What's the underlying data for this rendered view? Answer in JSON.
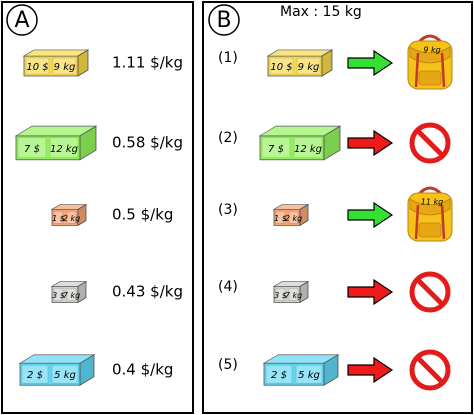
{
  "panels": {
    "a": {
      "label": "A",
      "items": [
        {
          "price": "10 $",
          "weight": "9 kg",
          "rate": "1.11 $/kg",
          "color": "#f7d84a"
        },
        {
          "price": "7 $",
          "weight": "12 kg",
          "rate": "0.58 $/kg",
          "color": "#92f25c"
        },
        {
          "price": "1 $",
          "weight": "2 kg",
          "rate": "0.5 $/kg",
          "color": "#f5a474"
        },
        {
          "price": "3 $",
          "weight": "7 kg",
          "rate": "0.43 $/kg",
          "color": "#cfcfcb"
        },
        {
          "price": "2 $",
          "weight": "5 kg",
          "rate": "0.4 $/kg",
          "color": "#5fd6f4"
        }
      ]
    },
    "b": {
      "label": "B",
      "title": "Max : 15 kg",
      "steps": [
        {
          "number": "(1)",
          "price": "10 $",
          "weight": "9 kg",
          "bag": "9 kg"
        },
        {
          "number": "(2)",
          "price": "7 $",
          "weight": "12 kg"
        },
        {
          "number": "(3)",
          "price": "1 $",
          "weight": "2 kg",
          "bag": "11 kg"
        },
        {
          "number": "(4)",
          "price": "3 $",
          "weight": "7 kg"
        },
        {
          "number": "(5)",
          "price": "2 $",
          "weight": "5 kg"
        }
      ]
    }
  }
}
